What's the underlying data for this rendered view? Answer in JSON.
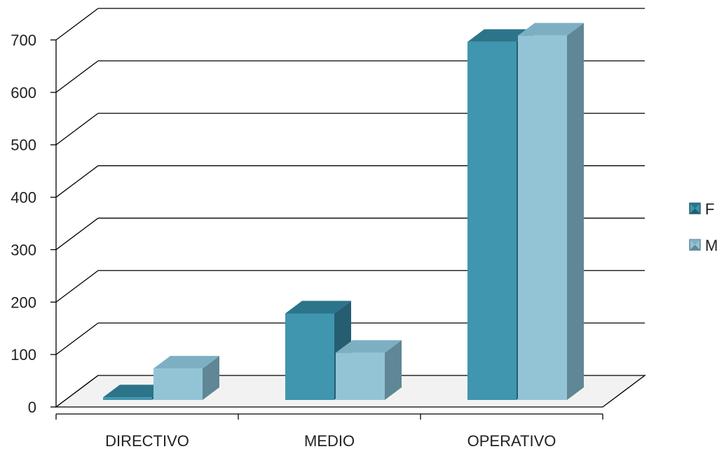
{
  "chart_data": {
    "type": "bar",
    "categories": [
      "DIRECTIVO",
      "MEDIO",
      "OPERATIVO"
    ],
    "series": [
      {
        "name": "F",
        "values": [
          5,
          165,
          683
        ]
      },
      {
        "name": "M",
        "values": [
          60,
          90,
          695
        ]
      }
    ],
    "title": "",
    "xlabel": "",
    "ylabel": "",
    "ylim": [
      0,
      700
    ],
    "yticks": [
      "0",
      "100",
      "200",
      "300",
      "400",
      "500",
      "600",
      "700"
    ],
    "grid": true,
    "legend_position": "right",
    "style": "3d-clustered-column"
  },
  "colors": {
    "F": {
      "front": "#3F96AE",
      "top": "#2C7489",
      "side": "#255E70"
    },
    "M": {
      "front": "#93C4D6",
      "top": "#7DAFC2",
      "side": "#5F8796"
    },
    "grid": "#000000",
    "floor": "#F2F2F2"
  }
}
